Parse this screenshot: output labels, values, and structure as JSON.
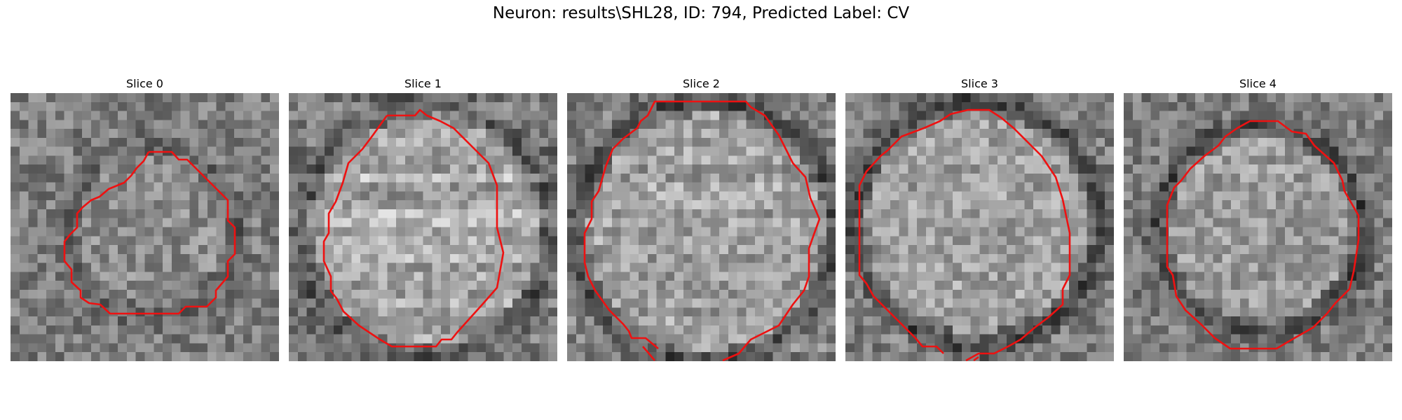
{
  "figure": {
    "title": "Neuron: results\\SHL28, ID: 794, Predicted Label: CV"
  },
  "contour_color": "#ee1111",
  "slices": [
    {
      "title": "Slice 0"
    },
    {
      "title": "Slice 1"
    },
    {
      "title": "Slice 2"
    },
    {
      "title": "Slice 3"
    },
    {
      "title": "Slice 4"
    }
  ]
}
